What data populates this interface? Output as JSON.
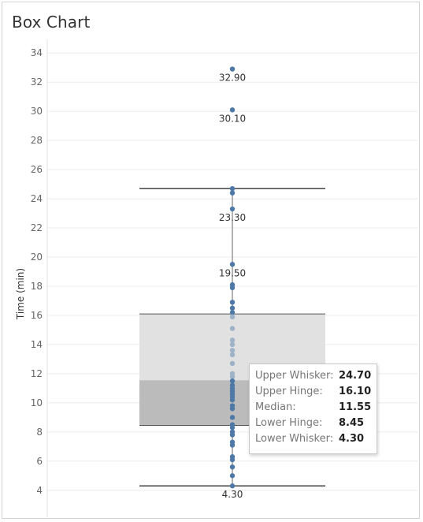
{
  "title": "Box Chart",
  "chart_data": {
    "type": "box",
    "ylabel": "Time (min)",
    "ylim": [
      3.5,
      34.5
    ],
    "yticks": [
      4,
      6,
      8,
      10,
      12,
      14,
      16,
      18,
      20,
      22,
      24,
      26,
      28,
      30,
      32,
      34
    ],
    "grid": true,
    "box": {
      "upper_whisker": 24.7,
      "upper_hinge": 16.1,
      "median": 11.55,
      "lower_hinge": 8.45,
      "lower_whisker": 4.3
    },
    "points": [
      32.9,
      30.1,
      24.7,
      24.4,
      23.3,
      19.5,
      18.1,
      17.9,
      16.9,
      16.5,
      16.2,
      15.9,
      15.1,
      14.3,
      14.0,
      13.6,
      13.3,
      12.7,
      12.0,
      11.8,
      11.5,
      11.2,
      11.0,
      10.8,
      10.6,
      10.4,
      10.2,
      9.8,
      9.6,
      9.0,
      8.5,
      8.3,
      8.0,
      7.8,
      7.3,
      7.1,
      6.3,
      6.1,
      5.6,
      5.0,
      4.3
    ],
    "data_labels": [
      {
        "value": 32.9,
        "text": "32.90"
      },
      {
        "value": 30.1,
        "text": "30.10"
      },
      {
        "value": 23.3,
        "text": "23.30"
      },
      {
        "value": 19.5,
        "text": "19.50"
      },
      {
        "value": 4.3,
        "text": "4.30"
      }
    ],
    "tooltip": [
      {
        "key": "Upper Whisker:",
        "value": "24.70"
      },
      {
        "key": "Upper Hinge:",
        "value": "16.10"
      },
      {
        "key": "Median:",
        "value": "11.55"
      },
      {
        "key": "Lower Hinge:",
        "value": "8.45"
      },
      {
        "key": "Lower Whisker:",
        "value": "4.30"
      }
    ],
    "colors": {
      "point": "#4e79a7",
      "point_in_upper_box": "#9fb3c8",
      "upper_box": "#e1e1e1",
      "lower_box": "#bbbbbb",
      "whisker": "#333333",
      "grid": "#ececec"
    }
  }
}
